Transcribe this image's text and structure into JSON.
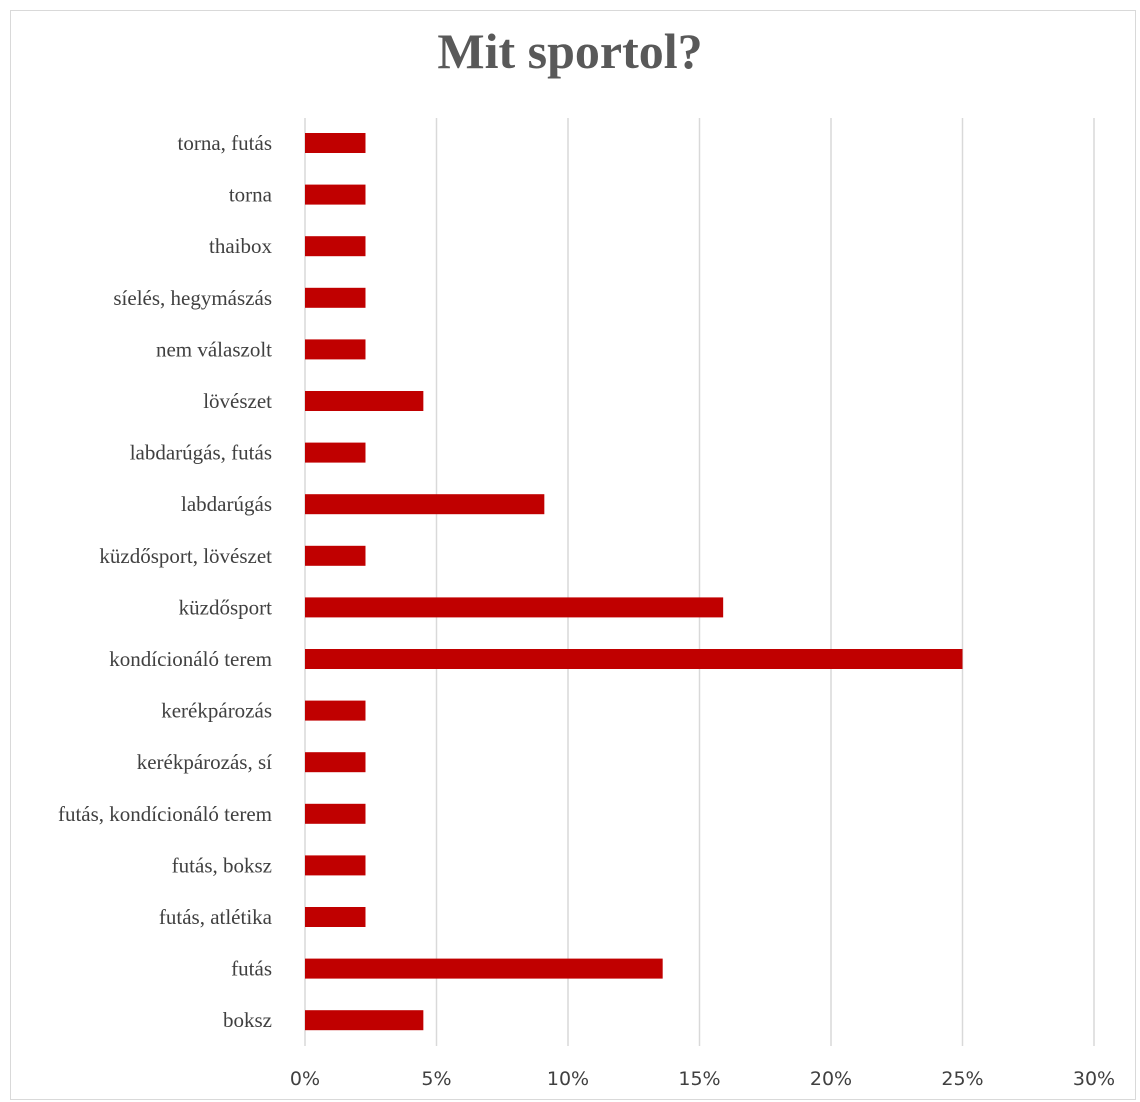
{
  "chart_data": {
    "type": "bar",
    "orientation": "horizontal",
    "title": "Mit sportol?",
    "xlabel": "",
    "ylabel": "",
    "xlim": [
      0,
      30
    ],
    "x_ticks": [
      0,
      5,
      10,
      15,
      20,
      25,
      30
    ],
    "x_tick_labels": [
      "0%",
      "5%",
      "10%",
      "15%",
      "20%",
      "25%",
      "30%"
    ],
    "grid": "vertical",
    "bar_color": "#c00000",
    "categories": [
      "torna, futás",
      "torna",
      "thaibox",
      "síelés, hegymászás",
      "nem válaszolt",
      "lövészet",
      "labdarúgás, futás",
      "labdarúgás",
      "küzdősport, lövészet",
      "küzdősport",
      "kondícionáló terem",
      "kerékpározás",
      "kerékpározás, sí",
      "futás, kondícionáló terem",
      "futás, boksz",
      "futás, atlétika",
      "futás",
      "boksz"
    ],
    "values": [
      2.3,
      2.3,
      2.3,
      2.3,
      2.3,
      4.5,
      2.3,
      9.1,
      2.3,
      15.9,
      25.0,
      2.3,
      2.3,
      2.3,
      2.3,
      2.3,
      13.6,
      4.5
    ]
  }
}
